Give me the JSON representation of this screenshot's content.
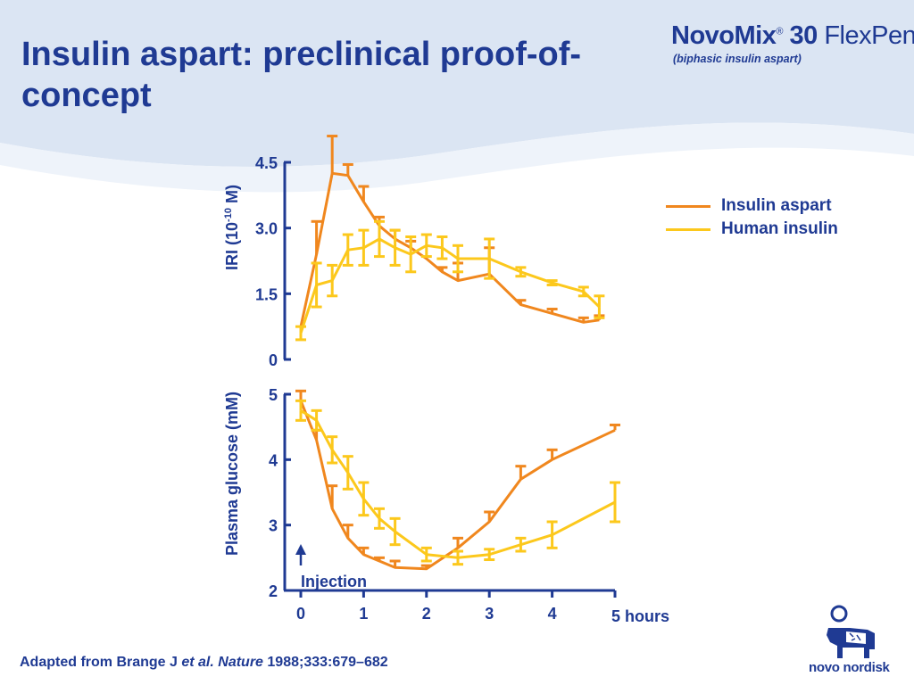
{
  "title": "Insulin aspart: preclinical proof-of-concept",
  "brand": {
    "name_part1": "Novo",
    "name_part2": "Mix",
    "number": "30",
    "product": "FlexPen",
    "reg": "®",
    "subtitle": "(biphasic insulin aspart)"
  },
  "citation": {
    "pre": "Adapted from Brange J ",
    "italic1": "et al. ",
    "journal": "Nature",
    "post": " 1988;333:679–682"
  },
  "company": "novo nordisk",
  "colors": {
    "title": "#1f3a93",
    "insulin_aspart": "#f0871e",
    "human_insulin": "#fcc81c",
    "axis": "#1f3a93",
    "background_wave": "#dbe5f3"
  },
  "legend": [
    {
      "label": "Insulin aspart",
      "color": "#f0871e"
    },
    {
      "label": "Human insulin",
      "color": "#fcc81c"
    }
  ],
  "chart_data": [
    {
      "type": "line",
      "ylabel_main": "IRI (10",
      "ylabel_sup": "-10",
      "ylabel_tail": " M)",
      "yticks": [
        0,
        1.5,
        3.0,
        4.5
      ],
      "ytick_labels": [
        "0",
        "1.5",
        "3.0",
        "4.5"
      ],
      "ylim": [
        0,
        4.5
      ],
      "xlim": [
        0,
        5
      ],
      "series": [
        {
          "name": "Insulin aspart",
          "color": "#f0871e",
          "x": [
            0,
            0.25,
            0.5,
            0.75,
            1.0,
            1.25,
            1.5,
            1.75,
            2.0,
            2.25,
            2.5,
            3.0,
            3.5,
            4.0,
            4.5,
            4.75
          ],
          "y": [
            0.75,
            2.4,
            4.25,
            4.2,
            3.6,
            3.05,
            2.75,
            2.55,
            2.3,
            2.0,
            1.8,
            1.95,
            1.25,
            1.05,
            0.85,
            0.9
          ],
          "err": [
            0,
            0.75,
            0.85,
            0.25,
            0.35,
            0.2,
            0.2,
            0.15,
            0,
            0.1,
            0.4,
            0.6,
            0.1,
            0.1,
            0.1,
            0.1
          ]
        },
        {
          "name": "Human insulin",
          "color": "#fcc81c",
          "x": [
            0,
            0.25,
            0.5,
            0.75,
            1.0,
            1.25,
            1.5,
            1.75,
            2.0,
            2.25,
            2.5,
            3.0,
            3.5,
            4.0,
            4.5,
            4.75
          ],
          "y": [
            0.6,
            1.7,
            1.8,
            2.5,
            2.55,
            2.75,
            2.55,
            2.4,
            2.6,
            2.55,
            2.3,
            2.3,
            2.0,
            1.75,
            1.55,
            1.2
          ],
          "err": [
            0.15,
            0.5,
            0.35,
            0.35,
            0.4,
            0.4,
            0.4,
            0.4,
            0.25,
            0.25,
            0.3,
            0.45,
            0.1,
            0.05,
            0.1,
            0.25
          ]
        }
      ]
    },
    {
      "type": "line",
      "ylabel": "Plasma glucose (mM)",
      "yticks": [
        2,
        3,
        4,
        5
      ],
      "ytick_labels": [
        "2",
        "3",
        "4",
        "5"
      ],
      "ylim": [
        2,
        5
      ],
      "xlim": [
        0,
        5
      ],
      "xticks": [
        0,
        1,
        2,
        3,
        4,
        5
      ],
      "xtick_labels": [
        "0",
        "1",
        "2",
        "3",
        "4",
        "5 hours"
      ],
      "annotation": "Injection",
      "series": [
        {
          "name": "Insulin aspart",
          "color": "#f0871e",
          "x": [
            0,
            0.25,
            0.5,
            0.75,
            1.0,
            1.25,
            1.5,
            2.0,
            2.5,
            3.0,
            3.5,
            4.0,
            5.0
          ],
          "y": [
            4.9,
            4.3,
            3.25,
            2.8,
            2.55,
            2.45,
            2.35,
            2.33,
            2.65,
            3.05,
            3.7,
            4.0,
            4.45
          ],
          "err": [
            0.15,
            0.15,
            0.35,
            0.2,
            0.1,
            0.05,
            0.1,
            0.05,
            0.15,
            0.15,
            0.2,
            0.15,
            0.08
          ]
        },
        {
          "name": "Human insulin",
          "color": "#fcc81c",
          "x": [
            0,
            0.25,
            0.5,
            0.75,
            1.0,
            1.25,
            1.5,
            2.0,
            2.5,
            3.0,
            3.5,
            4.0,
            5.0
          ],
          "y": [
            4.75,
            4.6,
            4.15,
            3.8,
            3.4,
            3.1,
            2.9,
            2.55,
            2.5,
            2.55,
            2.7,
            2.85,
            3.35
          ],
          "err": [
            0.15,
            0.15,
            0.2,
            0.25,
            0.25,
            0.15,
            0.2,
            0.1,
            0.1,
            0.08,
            0.1,
            0.2,
            0.3
          ]
        }
      ]
    }
  ]
}
